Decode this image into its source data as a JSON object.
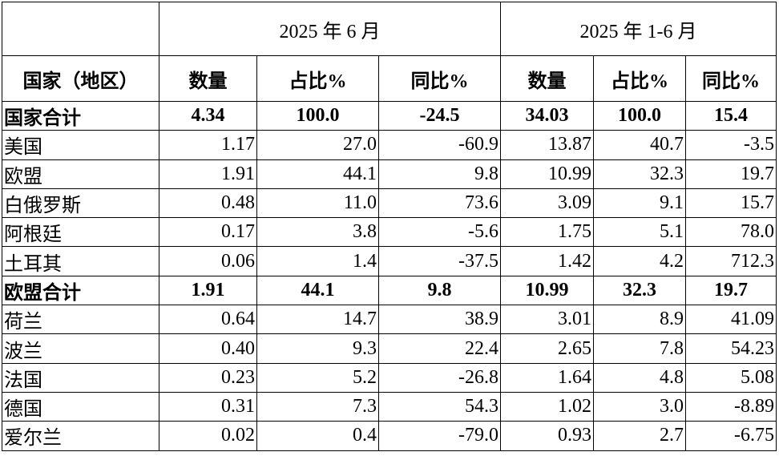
{
  "table": {
    "header": [
      [
        "",
        "2025 年 6 月",
        "2025 年 1-6 月"
      ],
      [
        "国家（地区）",
        "数量",
        "占比%",
        "同比%",
        "数量",
        "占比%",
        "同比%"
      ]
    ],
    "rows": [
      {
        "bold": true,
        "cells": [
          "国家合计",
          "4.34",
          "100.0",
          "-24.5",
          "34.03",
          "100.0",
          "15.4"
        ]
      },
      {
        "bold": false,
        "cells": [
          "美国",
          "1.17",
          "27.0",
          "-60.9",
          "13.87",
          "40.7",
          "-3.5"
        ]
      },
      {
        "bold": false,
        "cells": [
          "欧盟",
          "1.91",
          "44.1",
          "9.8",
          "10.99",
          "32.3",
          "19.7"
        ]
      },
      {
        "bold": false,
        "cells": [
          "白俄罗斯",
          "0.48",
          "11.0",
          "73.6",
          "3.09",
          "9.1",
          "15.7"
        ]
      },
      {
        "bold": false,
        "cells": [
          "阿根廷",
          "0.17",
          "3.8",
          "-5.6",
          "1.75",
          "5.1",
          "78.0"
        ]
      },
      {
        "bold": false,
        "cells": [
          "土耳其",
          "0.06",
          "1.4",
          "-37.5",
          "1.42",
          "4.2",
          "712.3"
        ]
      },
      {
        "bold": true,
        "cells": [
          "欧盟合计",
          "1.91",
          "44.1",
          "9.8",
          "10.99",
          "32.3",
          "19.7"
        ]
      },
      {
        "bold": false,
        "cells": [
          "荷兰",
          "0.64",
          "14.7",
          "38.9",
          "3.01",
          "8.9",
          "41.09"
        ]
      },
      {
        "bold": false,
        "cells": [
          "波兰",
          "0.40",
          "9.3",
          "22.4",
          "2.65",
          "7.8",
          "54.23"
        ]
      },
      {
        "bold": false,
        "cells": [
          "法国",
          "0.23",
          "5.2",
          "-26.8",
          "1.64",
          "4.8",
          "5.08"
        ]
      },
      {
        "bold": false,
        "cells": [
          "德国",
          "0.31",
          "7.3",
          "54.3",
          "1.02",
          "3.0",
          "-8.89"
        ]
      },
      {
        "bold": false,
        "cells": [
          "爱尔兰",
          "0.02",
          "0.4",
          "-79.0",
          "0.93",
          "2.7",
          "-6.75"
        ]
      }
    ]
  }
}
